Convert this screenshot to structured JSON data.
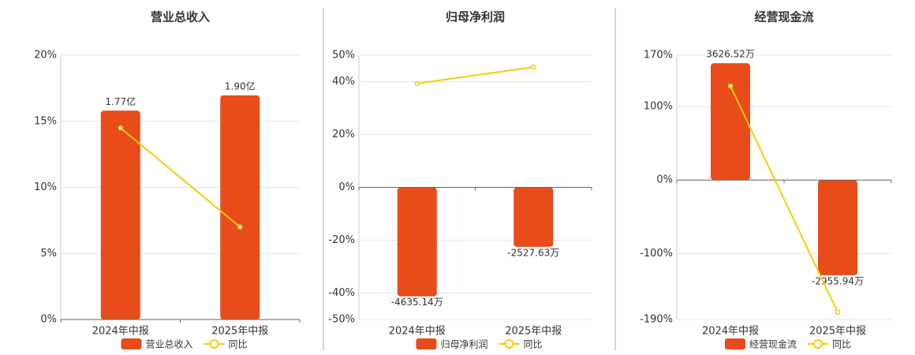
{
  "chart_data": [
    {
      "type": "bar",
      "title": "营业总收入",
      "categories": [
        "2024年中报",
        "2025年中报"
      ],
      "ylim": [
        0,
        20
      ],
      "yticks": [
        {
          "value": 0,
          "label": "0%"
        },
        {
          "value": 5,
          "label": "5%"
        },
        {
          "value": 10,
          "label": "10%"
        },
        {
          "value": 15,
          "label": "15%"
        },
        {
          "value": 20,
          "label": "20%"
        }
      ],
      "y2lim": [
        0,
        2.24
      ],
      "series": [
        {
          "name": "营业总收入",
          "type": "bar",
          "axis": "y2",
          "color": "#e84c1a",
          "values": [
            1.77,
            1.9
          ],
          "value_labels": [
            "1.77亿",
            "1.90亿"
          ]
        },
        {
          "name": "同比",
          "type": "line",
          "color": "#f5cc0b",
          "values": [
            14.5,
            7.0
          ]
        }
      ]
    },
    {
      "type": "bar",
      "title": "归母净利润",
      "categories": [
        "2024年中报",
        "2025年中报"
      ],
      "ylim": [
        -50,
        50
      ],
      "yticks": [
        {
          "value": -50,
          "label": "-50%"
        },
        {
          "value": -40,
          "label": "-40%"
        },
        {
          "value": -20,
          "label": "-20%"
        },
        {
          "value": 0,
          "label": "0%"
        },
        {
          "value": 20,
          "label": "20%"
        },
        {
          "value": 40,
          "label": "40%"
        },
        {
          "value": 50,
          "label": "50%"
        }
      ],
      "y2lim": [
        -5620,
        5620
      ],
      "series": [
        {
          "name": "归母净利润",
          "type": "bar",
          "axis": "y2",
          "color": "#e84c1a",
          "values": [
            -4635.14,
            -2527.63
          ],
          "value_labels": [
            "-4635.14万",
            "-2527.63万"
          ]
        },
        {
          "name": "同比",
          "type": "line",
          "color": "#f5cc0b",
          "values": [
            39.3,
            45.5
          ]
        }
      ]
    },
    {
      "type": "bar",
      "title": "经营现金流",
      "categories": [
        "2024年中报",
        "2025年中报"
      ],
      "ylim": [
        -190,
        170
      ],
      "yticks": [
        {
          "value": -190,
          "label": "-190%"
        },
        {
          "value": -100,
          "label": "-100%"
        },
        {
          "value": 0,
          "label": "0%"
        },
        {
          "value": 100,
          "label": "100%"
        },
        {
          "value": 170,
          "label": "170%"
        }
      ],
      "y2lim": [
        -4330,
        3875
      ],
      "series": [
        {
          "name": "经营现金流",
          "type": "bar",
          "axis": "y2",
          "color": "#e84c1a",
          "values": [
            3626.52,
            -2955.94
          ],
          "value_labels": [
            "3626.52万",
            "-2955.94万"
          ]
        },
        {
          "name": "同比",
          "type": "line",
          "color": "#f5cc0b",
          "values": [
            128,
            -180
          ]
        }
      ]
    }
  ]
}
